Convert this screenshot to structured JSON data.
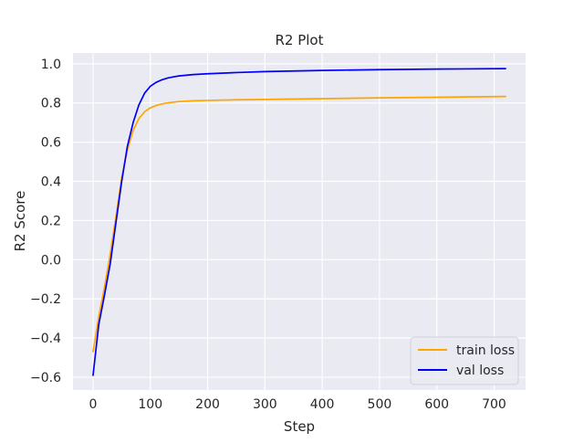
{
  "chart_data": {
    "type": "line",
    "title": "R2 Plot",
    "xlabel": "Step",
    "ylabel": "R2 Score",
    "xlim": [
      -35,
      755
    ],
    "ylim": [
      -0.665,
      1.055
    ],
    "xticks": [
      0,
      100,
      200,
      300,
      400,
      500,
      600,
      700
    ],
    "yticks": [
      -0.6,
      -0.4,
      -0.2,
      0.0,
      0.2,
      0.4,
      0.6,
      0.8,
      1.0
    ],
    "xtick_labels": [
      "0",
      "100",
      "200",
      "300",
      "400",
      "500",
      "600",
      "700"
    ],
    "ytick_labels": [
      "−0.6",
      "−0.4",
      "−0.2",
      "0.0",
      "0.2",
      "0.4",
      "0.6",
      "0.8",
      "1.0"
    ],
    "grid": true,
    "legend_position": "bottom-right",
    "colors": {
      "plot_background": "#eaeaf2",
      "grid": "#ffffff"
    },
    "series": [
      {
        "name": "train loss",
        "color": "#ffa500",
        "x": [
          0,
          10,
          20,
          30,
          40,
          50,
          60,
          70,
          80,
          90,
          100,
          110,
          120,
          130,
          140,
          150,
          175,
          200,
          250,
          300,
          400,
          500,
          600,
          720
        ],
        "y": [
          -0.47,
          -0.29,
          -0.14,
          0.03,
          0.22,
          0.42,
          0.56,
          0.66,
          0.72,
          0.755,
          0.775,
          0.787,
          0.795,
          0.8,
          0.804,
          0.807,
          0.811,
          0.813,
          0.816,
          0.818,
          0.822,
          0.826,
          0.829,
          0.833
        ]
      },
      {
        "name": "val loss",
        "color": "#0000ff",
        "x": [
          0,
          10,
          20,
          30,
          40,
          50,
          60,
          70,
          80,
          90,
          100,
          110,
          120,
          130,
          140,
          150,
          175,
          200,
          250,
          300,
          400,
          500,
          600,
          720
        ],
        "y": [
          -0.59,
          -0.33,
          -0.18,
          -0.02,
          0.19,
          0.4,
          0.58,
          0.7,
          0.79,
          0.85,
          0.885,
          0.905,
          0.918,
          0.927,
          0.933,
          0.938,
          0.945,
          0.949,
          0.955,
          0.96,
          0.966,
          0.97,
          0.973,
          0.975
        ]
      }
    ]
  }
}
